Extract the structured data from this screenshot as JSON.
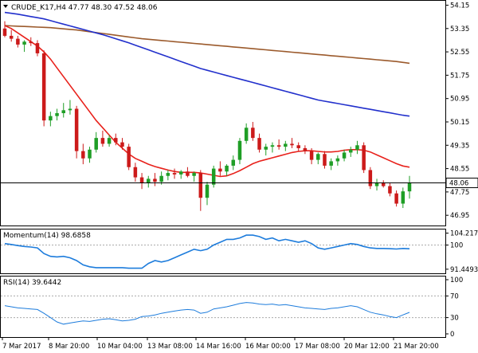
{
  "main_panel": {
    "header": "CRUDE_K17,H4  47.77 48.30 47.52 48.06",
    "y_ticks": [
      "54.15",
      "53.35",
      "52.55",
      "51.75",
      "50.95",
      "50.15",
      "49.35",
      "48.55",
      "47.75",
      "46.95"
    ],
    "price_tag": "48.06",
    "colors": {
      "ma_fast": "#e8211b",
      "ma_mid": "#2230cc",
      "ma_slow": "#9b5a2c",
      "candle_up": "#1f9e26",
      "candle_down": "#cc1a1a"
    }
  },
  "momentum_panel": {
    "header": "Momentum(14) 98.6858",
    "y_ticks": [
      "104.2171",
      "100",
      "91.4493"
    ],
    "color": "#1d7cdc"
  },
  "rsi_panel": {
    "header": "RSI(14) 39.6442",
    "y_ticks": [
      "100",
      "70",
      "30",
      "0"
    ],
    "color": "#1d7cdc"
  },
  "x_ticks": [
    "7 Mar 2017",
    "8 Mar 20:00",
    "10 Mar 04:00",
    "13 Mar 08:00",
    "14 Mar 16:00",
    "16 Mar 00:00",
    "17 Mar 08:00",
    "20 Mar 12:00",
    "21 Mar 20:00"
  ],
  "chart_data": {
    "type": "candlestick",
    "symbol": "CRUDE_K17",
    "timeframe": "H4",
    "last_bar": {
      "open": 47.77,
      "high": 48.3,
      "low": 47.52,
      "close": 48.06
    },
    "ylim": [
      46.6,
      54.3
    ],
    "candles": [
      [
        53.35,
        53.6,
        53.05,
        53.1
      ],
      [
        53.1,
        53.3,
        52.9,
        53.0
      ],
      [
        53.0,
        53.1,
        52.7,
        52.8
      ],
      [
        52.8,
        52.95,
        52.55,
        52.9
      ],
      [
        52.9,
        53.05,
        52.75,
        52.85
      ],
      [
        52.85,
        52.95,
        52.4,
        52.5
      ],
      [
        52.5,
        52.6,
        50.0,
        50.2
      ],
      [
        50.2,
        50.5,
        50.0,
        50.35
      ],
      [
        50.35,
        50.6,
        50.2,
        50.45
      ],
      [
        50.45,
        50.8,
        50.3,
        50.55
      ],
      [
        50.55,
        50.9,
        50.4,
        50.6
      ],
      [
        50.6,
        50.7,
        48.9,
        49.15
      ],
      [
        49.15,
        49.4,
        48.7,
        48.9
      ],
      [
        48.9,
        49.3,
        48.75,
        49.2
      ],
      [
        49.2,
        49.8,
        49.1,
        49.6
      ],
      [
        49.6,
        49.85,
        49.3,
        49.4
      ],
      [
        49.4,
        49.7,
        49.3,
        49.6
      ],
      [
        49.6,
        49.75,
        49.35,
        49.45
      ],
      [
        49.45,
        49.6,
        49.2,
        49.3
      ],
      [
        49.3,
        49.4,
        48.5,
        48.6
      ],
      [
        48.6,
        48.75,
        48.1,
        48.25
      ],
      [
        48.25,
        48.4,
        47.85,
        48.05
      ],
      [
        48.05,
        48.3,
        47.9,
        48.2
      ],
      [
        48.2,
        48.4,
        47.95,
        48.1
      ],
      [
        48.1,
        48.45,
        48.0,
        48.3
      ],
      [
        48.3,
        48.5,
        48.15,
        48.4
      ],
      [
        48.4,
        48.55,
        48.2,
        48.35
      ],
      [
        48.35,
        48.5,
        48.2,
        48.45
      ],
      [
        48.45,
        48.6,
        48.25,
        48.3
      ],
      [
        48.3,
        48.45,
        48.1,
        48.4
      ],
      [
        48.4,
        48.5,
        47.1,
        47.55
      ],
      [
        47.55,
        48.1,
        47.3,
        48.0
      ],
      [
        48.0,
        48.65,
        47.9,
        48.55
      ],
      [
        48.55,
        48.8,
        48.3,
        48.45
      ],
      [
        48.45,
        48.7,
        48.3,
        48.65
      ],
      [
        48.65,
        49.0,
        48.5,
        48.85
      ],
      [
        48.85,
        49.6,
        48.7,
        49.5
      ],
      [
        49.5,
        50.1,
        49.4,
        49.95
      ],
      [
        49.95,
        50.15,
        49.5,
        49.6
      ],
      [
        49.6,
        49.75,
        49.1,
        49.2
      ],
      [
        49.2,
        49.4,
        49.0,
        49.3
      ],
      [
        49.3,
        49.45,
        49.1,
        49.35
      ],
      [
        49.35,
        49.55,
        49.2,
        49.3
      ],
      [
        49.3,
        49.5,
        49.15,
        49.4
      ],
      [
        49.4,
        49.6,
        49.25,
        49.35
      ],
      [
        49.35,
        49.45,
        49.15,
        49.25
      ],
      [
        49.25,
        49.35,
        49.05,
        49.15
      ],
      [
        49.15,
        49.25,
        48.7,
        48.85
      ],
      [
        48.85,
        49.1,
        48.7,
        49.05
      ],
      [
        49.05,
        49.15,
        48.55,
        48.65
      ],
      [
        48.65,
        48.9,
        48.5,
        48.8
      ],
      [
        48.8,
        49.0,
        48.65,
        48.9
      ],
      [
        48.9,
        49.2,
        48.8,
        49.1
      ],
      [
        49.1,
        49.3,
        48.95,
        49.2
      ],
      [
        49.2,
        49.5,
        49.05,
        49.35
      ],
      [
        49.35,
        49.45,
        48.4,
        48.5
      ],
      [
        48.5,
        48.6,
        47.85,
        47.95
      ],
      [
        47.95,
        48.2,
        47.8,
        48.05
      ],
      [
        48.05,
        48.15,
        47.9,
        47.95
      ],
      [
        47.95,
        48.05,
        47.6,
        47.7
      ],
      [
        47.7,
        47.8,
        47.25,
        47.35
      ],
      [
        47.35,
        47.9,
        47.2,
        47.77
      ],
      [
        47.77,
        48.3,
        47.52,
        48.06
      ]
    ],
    "ma_fast": [
      53.45,
      53.35,
      53.2,
      53.05,
      52.9,
      52.75,
      52.55,
      52.3,
      52.0,
      51.7,
      51.4,
      51.1,
      50.8,
      50.5,
      50.2,
      49.95,
      49.7,
      49.45,
      49.25,
      49.05,
      48.9,
      48.8,
      48.7,
      48.62,
      48.56,
      48.5,
      48.45,
      48.42,
      48.42,
      48.42,
      48.4,
      48.36,
      48.32,
      48.28,
      48.3,
      48.38,
      48.48,
      48.6,
      48.72,
      48.8,
      48.86,
      48.92,
      48.98,
      49.04,
      49.1,
      49.14,
      49.16,
      49.16,
      49.14,
      49.12,
      49.12,
      49.14,
      49.18,
      49.2,
      49.2,
      49.18,
      49.12,
      49.02,
      48.92,
      48.82,
      48.72,
      48.64,
      48.6
    ],
    "ma_mid": [
      53.9,
      53.87,
      53.84,
      53.8,
      53.76,
      53.72,
      53.68,
      53.62,
      53.56,
      53.5,
      53.44,
      53.38,
      53.32,
      53.26,
      53.2,
      53.14,
      53.07,
      53.0,
      52.93,
      52.86,
      52.78,
      52.7,
      52.62,
      52.54,
      52.46,
      52.38,
      52.3,
      52.22,
      52.14,
      52.06,
      51.98,
      51.92,
      51.86,
      51.8,
      51.74,
      51.68,
      51.62,
      51.56,
      51.5,
      51.44,
      51.38,
      51.32,
      51.26,
      51.2,
      51.14,
      51.08,
      51.02,
      50.96,
      50.9,
      50.86,
      50.82,
      50.78,
      50.74,
      50.7,
      50.66,
      50.62,
      50.58,
      50.54,
      50.5,
      50.46,
      50.42,
      50.38,
      50.35
    ],
    "ma_slow": [
      53.45,
      53.44,
      53.43,
      53.42,
      53.41,
      53.4,
      53.39,
      53.38,
      53.36,
      53.34,
      53.32,
      53.3,
      53.27,
      53.24,
      53.21,
      53.18,
      53.15,
      53.12,
      53.09,
      53.06,
      53.03,
      53.0,
      52.98,
      52.96,
      52.94,
      52.92,
      52.9,
      52.88,
      52.86,
      52.84,
      52.82,
      52.8,
      52.78,
      52.76,
      52.74,
      52.72,
      52.7,
      52.68,
      52.66,
      52.64,
      52.62,
      52.6,
      52.58,
      52.56,
      52.54,
      52.52,
      52.5,
      52.48,
      52.46,
      52.44,
      52.42,
      52.4,
      52.38,
      52.36,
      52.34,
      52.32,
      52.3,
      52.28,
      52.26,
      52.24,
      52.22,
      52.19,
      52.16
    ],
    "momentum": {
      "ylim": [
        90.0,
        105.5
      ],
      "reference": 100,
      "values": [
        100.5,
        100.2,
        99.8,
        99.5,
        99.3,
        99.0,
        97.0,
        96.0,
        95.8,
        96.0,
        95.5,
        94.5,
        93.0,
        92.3,
        92.0,
        92.0,
        92.0,
        92.0,
        92.0,
        91.8,
        91.8,
        91.8,
        93.5,
        94.5,
        94.0,
        94.5,
        95.5,
        96.5,
        97.5,
        98.5,
        98.0,
        98.5,
        100.0,
        101.0,
        102.0,
        102.0,
        102.5,
        103.5,
        103.5,
        103.0,
        102.0,
        102.5,
        101.5,
        102.0,
        101.5,
        101.0,
        101.5,
        100.5,
        99.0,
        98.5,
        99.0,
        99.5,
        100.0,
        100.5,
        100.2,
        99.5,
        99.0,
        98.8,
        98.8,
        98.7,
        98.6,
        98.8,
        98.69
      ]
    },
    "rsi": {
      "ylim": [
        0,
        100
      ],
      "levels": [
        70,
        30
      ],
      "values": [
        52,
        50,
        48,
        47,
        46,
        45,
        38,
        30,
        22,
        18,
        20,
        22,
        24,
        23,
        25,
        27,
        28,
        26,
        24,
        25,
        27,
        32,
        33,
        35,
        38,
        40,
        42,
        44,
        45,
        44,
        38,
        40,
        46,
        48,
        50,
        53,
        56,
        58,
        57,
        55,
        54,
        55,
        53,
        54,
        52,
        50,
        48,
        47,
        46,
        45,
        47,
        48,
        50,
        52,
        50,
        45,
        40,
        37,
        35,
        32,
        30,
        35,
        39.64
      ]
    }
  }
}
